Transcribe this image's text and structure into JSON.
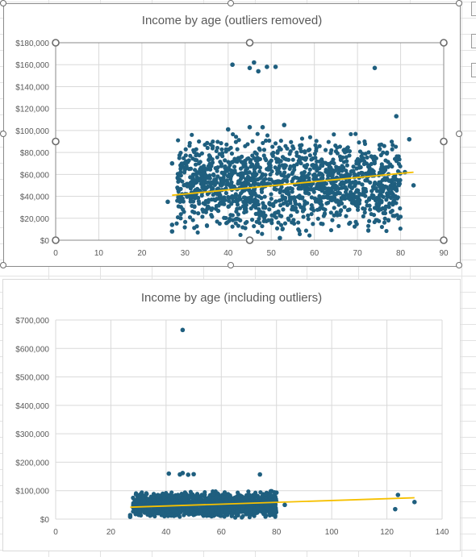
{
  "chart_data": [
    {
      "type": "scatter",
      "title": "Income by age (outliers removed)",
      "xlim": [
        0,
        90
      ],
      "ylim": [
        0,
        180000
      ],
      "x_ticks": [
        "0",
        "10",
        "20",
        "30",
        "40",
        "50",
        "60",
        "70",
        "80",
        "90"
      ],
      "y_ticks": [
        "$0",
        "$20,000",
        "$40,000",
        "$60,000",
        "$80,000",
        "$100,000",
        "$120,000",
        "$140,000",
        "$160,000",
        "$180,000"
      ],
      "grid": true,
      "marker_color": "#1f5f7f",
      "trendline_color": "#f6c000",
      "trendline": {
        "x": [
          27,
          83
        ],
        "y": [
          41000,
          62000
        ]
      },
      "outliers": [
        {
          "x": 41,
          "y": 160000
        },
        {
          "x": 45,
          "y": 157000
        },
        {
          "x": 46,
          "y": 162000
        },
        {
          "x": 47,
          "y": 154000
        },
        {
          "x": 49,
          "y": 158000
        },
        {
          "x": 51,
          "y": 158000
        },
        {
          "x": 74,
          "y": 157000
        },
        {
          "x": 79,
          "y": 113000
        },
        {
          "x": 53,
          "y": 105000
        },
        {
          "x": 45,
          "y": 103000
        },
        {
          "x": 48,
          "y": 103000
        },
        {
          "x": 40,
          "y": 101000
        },
        {
          "x": 27,
          "y": 14000
        },
        {
          "x": 27,
          "y": 8000
        },
        {
          "x": 82,
          "y": 92000
        },
        {
          "x": 83,
          "y": 50000
        },
        {
          "x": 81,
          "y": 62000
        },
        {
          "x": 26,
          "y": 35000
        },
        {
          "x": 27,
          "y": 70000
        },
        {
          "x": 52,
          "y": 2000
        },
        {
          "x": 45,
          "y": 1000
        }
      ],
      "cluster": {
        "x_range": [
          28,
          80
        ],
        "y_range": [
          4000,
          98000
        ],
        "count": 1500
      }
    },
    {
      "type": "scatter",
      "title": "Income by age (including outliers)",
      "xlim": [
        0,
        140
      ],
      "ylim": [
        0,
        700000
      ],
      "x_ticks": [
        "0",
        "20",
        "40",
        "60",
        "80",
        "100",
        "120",
        "140"
      ],
      "y_ticks": [
        "$0",
        "$100,000",
        "$200,000",
        "$300,000",
        "$400,000",
        "$500,000",
        "$600,000",
        "$700,000"
      ],
      "grid": true,
      "marker_color": "#1f5f7f",
      "trendline_color": "#f6c000",
      "trendline": {
        "x": [
          27,
          130
        ],
        "y": [
          42000,
          75000
        ]
      },
      "outliers": [
        {
          "x": 46,
          "y": 665000
        },
        {
          "x": 41,
          "y": 160000
        },
        {
          "x": 45,
          "y": 157000
        },
        {
          "x": 46,
          "y": 162000
        },
        {
          "x": 48,
          "y": 156000
        },
        {
          "x": 50,
          "y": 158000
        },
        {
          "x": 74,
          "y": 157000
        },
        {
          "x": 124,
          "y": 85000
        },
        {
          "x": 123,
          "y": 35000
        },
        {
          "x": 130,
          "y": 60000
        },
        {
          "x": 80,
          "y": 93000
        },
        {
          "x": 83,
          "y": 50000
        },
        {
          "x": 27,
          "y": 14000
        },
        {
          "x": 27,
          "y": 8000
        }
      ],
      "cluster": {
        "x_range": [
          28,
          80
        ],
        "y_range": [
          4000,
          100000
        ],
        "count": 1500
      }
    }
  ]
}
